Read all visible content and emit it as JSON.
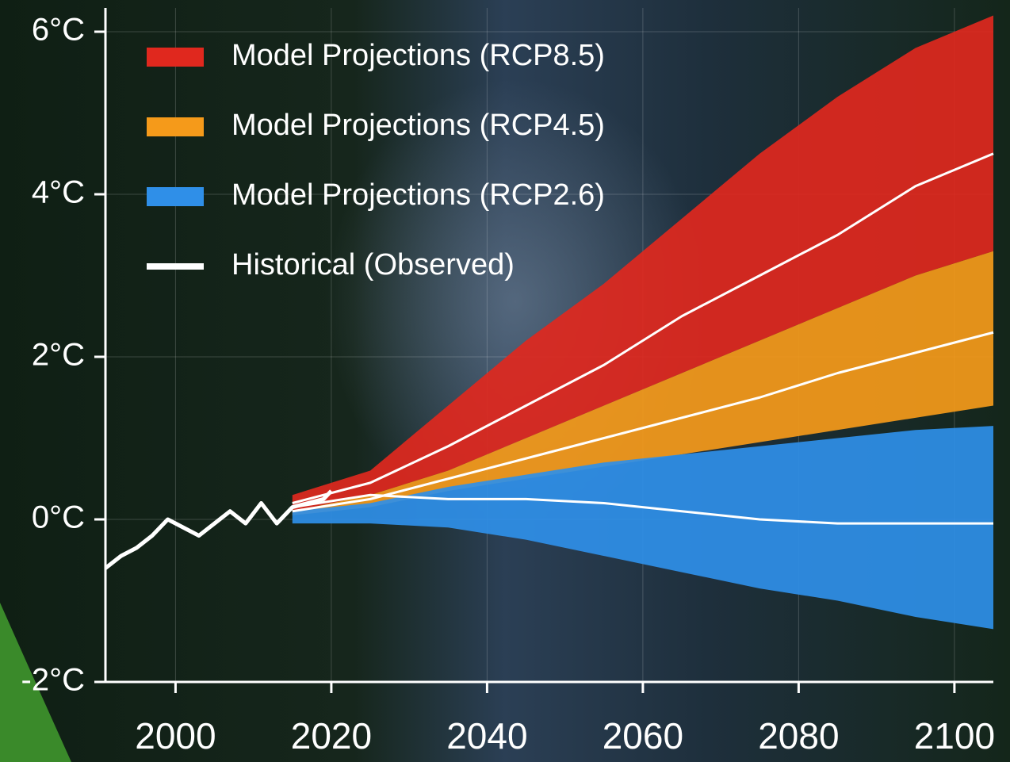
{
  "chart_data": {
    "type": "band-line",
    "x": [
      2015,
      2025,
      2035,
      2045,
      2055,
      2065,
      2075,
      2085,
      2095,
      2105
    ],
    "series": [
      {
        "name": "Model Projections (RCP8.5)",
        "color": "#e0281e",
        "upper": [
          0.3,
          0.6,
          1.4,
          2.2,
          2.9,
          3.7,
          4.5,
          5.2,
          5.8,
          6.2
        ],
        "lower": [
          0.1,
          0.3,
          0.6,
          1.0,
          1.4,
          1.8,
          2.2,
          2.6,
          3.0,
          3.3
        ],
        "values": [
          0.2,
          0.45,
          0.9,
          1.4,
          1.9,
          2.5,
          3.0,
          3.5,
          4.1,
          4.5
        ]
      },
      {
        "name": "Model Projections (RCP4.5)",
        "color": "#f59a1a",
        "upper": [
          0.1,
          0.3,
          0.6,
          1.0,
          1.4,
          1.8,
          2.2,
          2.6,
          3.0,
          3.3
        ],
        "lower": [
          0.05,
          0.15,
          0.35,
          0.5,
          0.65,
          0.8,
          0.95,
          1.1,
          1.25,
          1.4
        ],
        "values": [
          0.1,
          0.25,
          0.5,
          0.75,
          1.0,
          1.25,
          1.5,
          1.8,
          2.05,
          2.3
        ]
      },
      {
        "name": "Model Projections (RCP2.6)",
        "color": "#2f8fe8",
        "upper": [
          0.1,
          0.2,
          0.4,
          0.55,
          0.7,
          0.8,
          0.9,
          1.0,
          1.1,
          1.15
        ],
        "lower": [
          -0.05,
          -0.05,
          -0.1,
          -0.25,
          -0.45,
          -0.65,
          -0.85,
          -1.0,
          -1.2,
          -1.35
        ],
        "values": [
          0.15,
          0.3,
          0.25,
          0.25,
          0.2,
          0.1,
          0.0,
          -0.05,
          -0.05,
          -0.05
        ]
      },
      {
        "name": "Historical (Observed)",
        "color": "#ffffff",
        "x": [
          1991,
          1993,
          1995,
          1997,
          1999,
          2001,
          2003,
          2005,
          2007,
          2009,
          2011,
          2013,
          2015,
          2017,
          2019,
          2020
        ],
        "values": [
          -0.6,
          -0.45,
          -0.35,
          -0.2,
          0.0,
          -0.1,
          -0.2,
          -0.05,
          0.1,
          -0.05,
          0.2,
          -0.05,
          0.15,
          0.2,
          0.25,
          0.35
        ]
      }
    ],
    "xlim": [
      1991,
      2105
    ],
    "xticks": [
      2000,
      2020,
      2040,
      2060,
      2080,
      2100
    ],
    "ylim": [
      -2,
      6
    ],
    "yticks": [
      {
        "value": -2,
        "label": "-2°C"
      },
      {
        "value": 0,
        "label": "0°C"
      },
      {
        "value": 2,
        "label": "2°C"
      },
      {
        "value": 4,
        "label": "4°C"
      },
      {
        "value": 6,
        "label": "6°C"
      }
    ],
    "grid": true
  }
}
